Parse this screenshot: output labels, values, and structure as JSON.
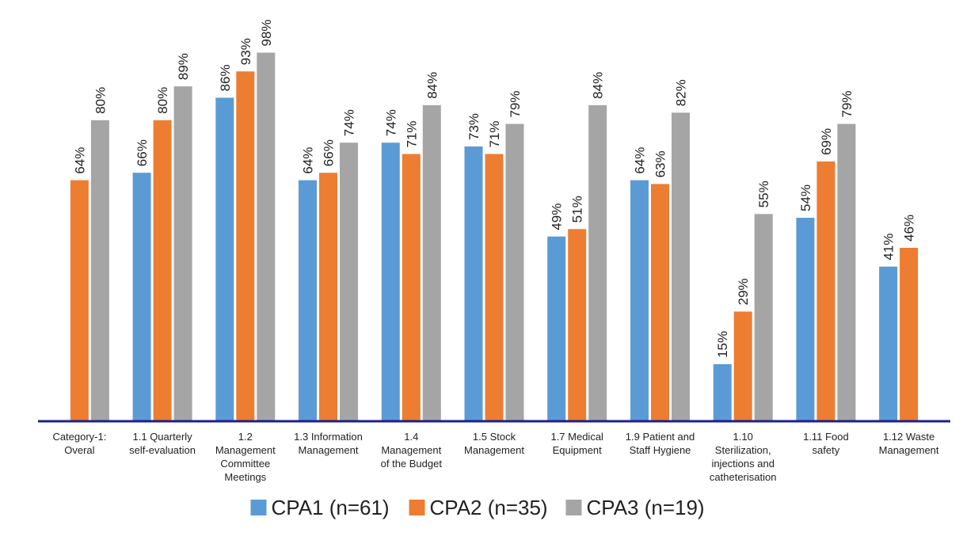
{
  "chart_data": {
    "type": "bar",
    "title": "",
    "xlabel": "",
    "ylabel": "",
    "ylim": [
      0,
      105
    ],
    "grid": false,
    "legend_position": "bottom",
    "value_suffix": "%",
    "categories": [
      [
        "Category-1:",
        "Overal"
      ],
      [
        "1.1 Quarterly",
        "self-evaluation"
      ],
      [
        "1.2",
        "Management",
        "Committee",
        "Meetings"
      ],
      [
        "1.3 Information",
        "Management"
      ],
      [
        "1.4",
        "Management",
        "of the Budget"
      ],
      [
        "1.5 Stock",
        "Management"
      ],
      [
        "1.7 Medical",
        "Equipment"
      ],
      [
        "1.9 Patient and",
        "Staff Hygiene"
      ],
      [
        "1.10",
        "Sterilization,",
        "injections and",
        "catheterisation"
      ],
      [
        "1.11 Food",
        "safety"
      ],
      [
        "1.12 Waste",
        "Management"
      ]
    ],
    "series": [
      {
        "name": "CPA1 (n=61)",
        "color": "#5B9BD5",
        "values": [
          null,
          66,
          86,
          64,
          74,
          73,
          49,
          64,
          15,
          54,
          41
        ]
      },
      {
        "name": "CPA2 (n=35)",
        "color": "#ED7D31",
        "values": [
          64,
          80,
          93,
          66,
          71,
          71,
          51,
          63,
          29,
          69,
          46
        ]
      },
      {
        "name": "CPA3 (n=19)",
        "color": "#A5A5A5",
        "values": [
          80,
          89,
          98,
          74,
          84,
          79,
          84,
          82,
          55,
          79,
          null
        ]
      }
    ],
    "axis_color": "#1F1F8F"
  }
}
